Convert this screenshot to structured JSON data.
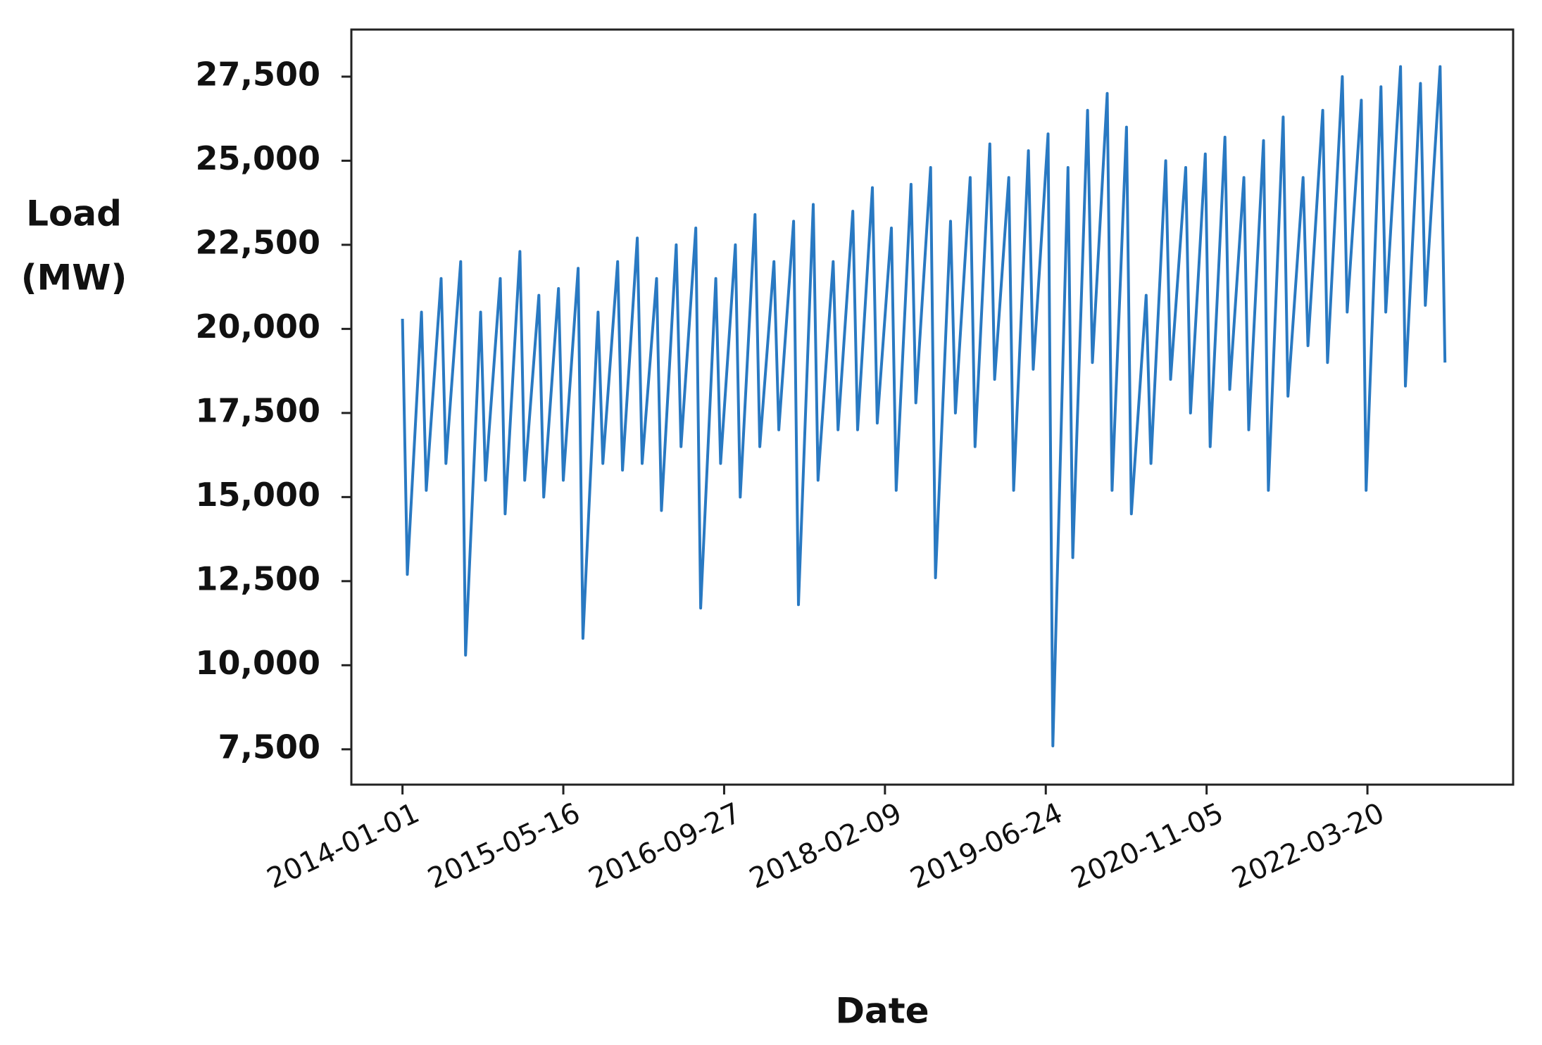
{
  "chart_data": {
    "type": "line",
    "x_label": "Date",
    "y_label": [
      "Load",
      "(MW)"
    ],
    "color": "#2979c2",
    "x": [
      "2014-01-01",
      "2014-01-16",
      "2014-03-01",
      "2014-03-16",
      "2014-05-01",
      "2014-05-16",
      "2014-07-01",
      "2014-07-16",
      "2014-09-01",
      "2014-09-16",
      "2014-11-01",
      "2014-11-16",
      "2015-01-01",
      "2015-01-16",
      "2015-03-01",
      "2015-03-16",
      "2015-05-01",
      "2015-05-16",
      "2015-07-01",
      "2015-07-16",
      "2015-09-01",
      "2015-09-16",
      "2015-11-01",
      "2015-11-16",
      "2016-01-01",
      "2016-01-16",
      "2016-03-01",
      "2016-03-16",
      "2016-05-01",
      "2016-05-16",
      "2016-07-01",
      "2016-07-16",
      "2016-09-01",
      "2016-09-16",
      "2016-11-01",
      "2016-11-16",
      "2017-01-01",
      "2017-01-16",
      "2017-03-01",
      "2017-03-16",
      "2017-05-01",
      "2017-05-16",
      "2017-07-01",
      "2017-07-16",
      "2017-09-01",
      "2017-09-16",
      "2017-11-01",
      "2017-11-16",
      "2018-01-01",
      "2018-01-16",
      "2018-03-01",
      "2018-03-16",
      "2018-05-01",
      "2018-05-16",
      "2018-07-01",
      "2018-07-16",
      "2018-09-01",
      "2018-09-16",
      "2018-11-01",
      "2018-11-16",
      "2019-01-01",
      "2019-01-16",
      "2019-03-01",
      "2019-03-16",
      "2019-05-01",
      "2019-05-16",
      "2019-07-01",
      "2019-07-16",
      "2019-09-01",
      "2019-09-16",
      "2019-11-01",
      "2019-11-16",
      "2020-01-01",
      "2020-01-16",
      "2020-03-01",
      "2020-03-16",
      "2020-05-01",
      "2020-05-16",
      "2020-07-01",
      "2020-07-16",
      "2020-09-01",
      "2020-09-16",
      "2020-11-01",
      "2020-11-16",
      "2021-01-01",
      "2021-01-16",
      "2021-03-01",
      "2021-03-16",
      "2021-05-01",
      "2021-05-16",
      "2021-07-01",
      "2021-07-16",
      "2021-09-01",
      "2021-09-16",
      "2021-11-01",
      "2021-11-16",
      "2022-01-01",
      "2022-01-16",
      "2022-03-01",
      "2022-03-16",
      "2022-05-01",
      "2022-05-16",
      "2022-07-01",
      "2022-07-16",
      "2022-09-01",
      "2022-09-16",
      "2022-11-01",
      "2022-11-16"
    ],
    "values": [
      20300,
      12700,
      20500,
      15200,
      21500,
      16000,
      22000,
      10300,
      20500,
      15500,
      21500,
      14500,
      22300,
      15500,
      21000,
      15000,
      21200,
      15500,
      21800,
      10800,
      20500,
      16000,
      22000,
      15800,
      22700,
      16000,
      21500,
      14600,
      22500,
      16500,
      23000,
      11700,
      21500,
      16000,
      22500,
      15000,
      23400,
      16500,
      22000,
      17000,
      23200,
      11800,
      23700,
      15500,
      22000,
      17000,
      23500,
      17000,
      24200,
      17200,
      23000,
      15200,
      24300,
      17800,
      24800,
      12600,
      23200,
      17500,
      24500,
      16500,
      25500,
      18500,
      24500,
      15200,
      25300,
      18800,
      25800,
      7600,
      24800,
      13200,
      26500,
      19000,
      27000,
      15200,
      26000,
      14500,
      21000,
      16000,
      25000,
      18500,
      24800,
      17500,
      25200,
      16500,
      25700,
      18200,
      24500,
      17000,
      25600,
      15200,
      26300,
      18000,
      24500,
      19500,
      26500,
      19000,
      27500,
      20500,
      26800,
      15200,
      27200,
      20500,
      27800,
      18300,
      27300,
      20700,
      27800,
      19000
    ],
    "xlim": [
      "2013-07-26",
      "2023-06-16"
    ],
    "xticks": [
      "2014-01-01",
      "2015-05-16",
      "2016-09-27",
      "2018-02-09",
      "2019-06-24",
      "2020-11-05",
      "2022-03-20"
    ],
    "ylim": [
      6450,
      28900
    ],
    "yticks": [
      {
        "value": 7500,
        "label": "7,500"
      },
      {
        "value": 10000,
        "label": "10,000"
      },
      {
        "value": 12500,
        "label": "12,500"
      },
      {
        "value": 15000,
        "label": "15,000"
      },
      {
        "value": 17500,
        "label": "17,500"
      },
      {
        "value": 20000,
        "label": "20,000"
      },
      {
        "value": 22500,
        "label": "22,500"
      },
      {
        "value": 25000,
        "label": "25,000"
      },
      {
        "value": 27500,
        "label": "27,500"
      }
    ]
  }
}
